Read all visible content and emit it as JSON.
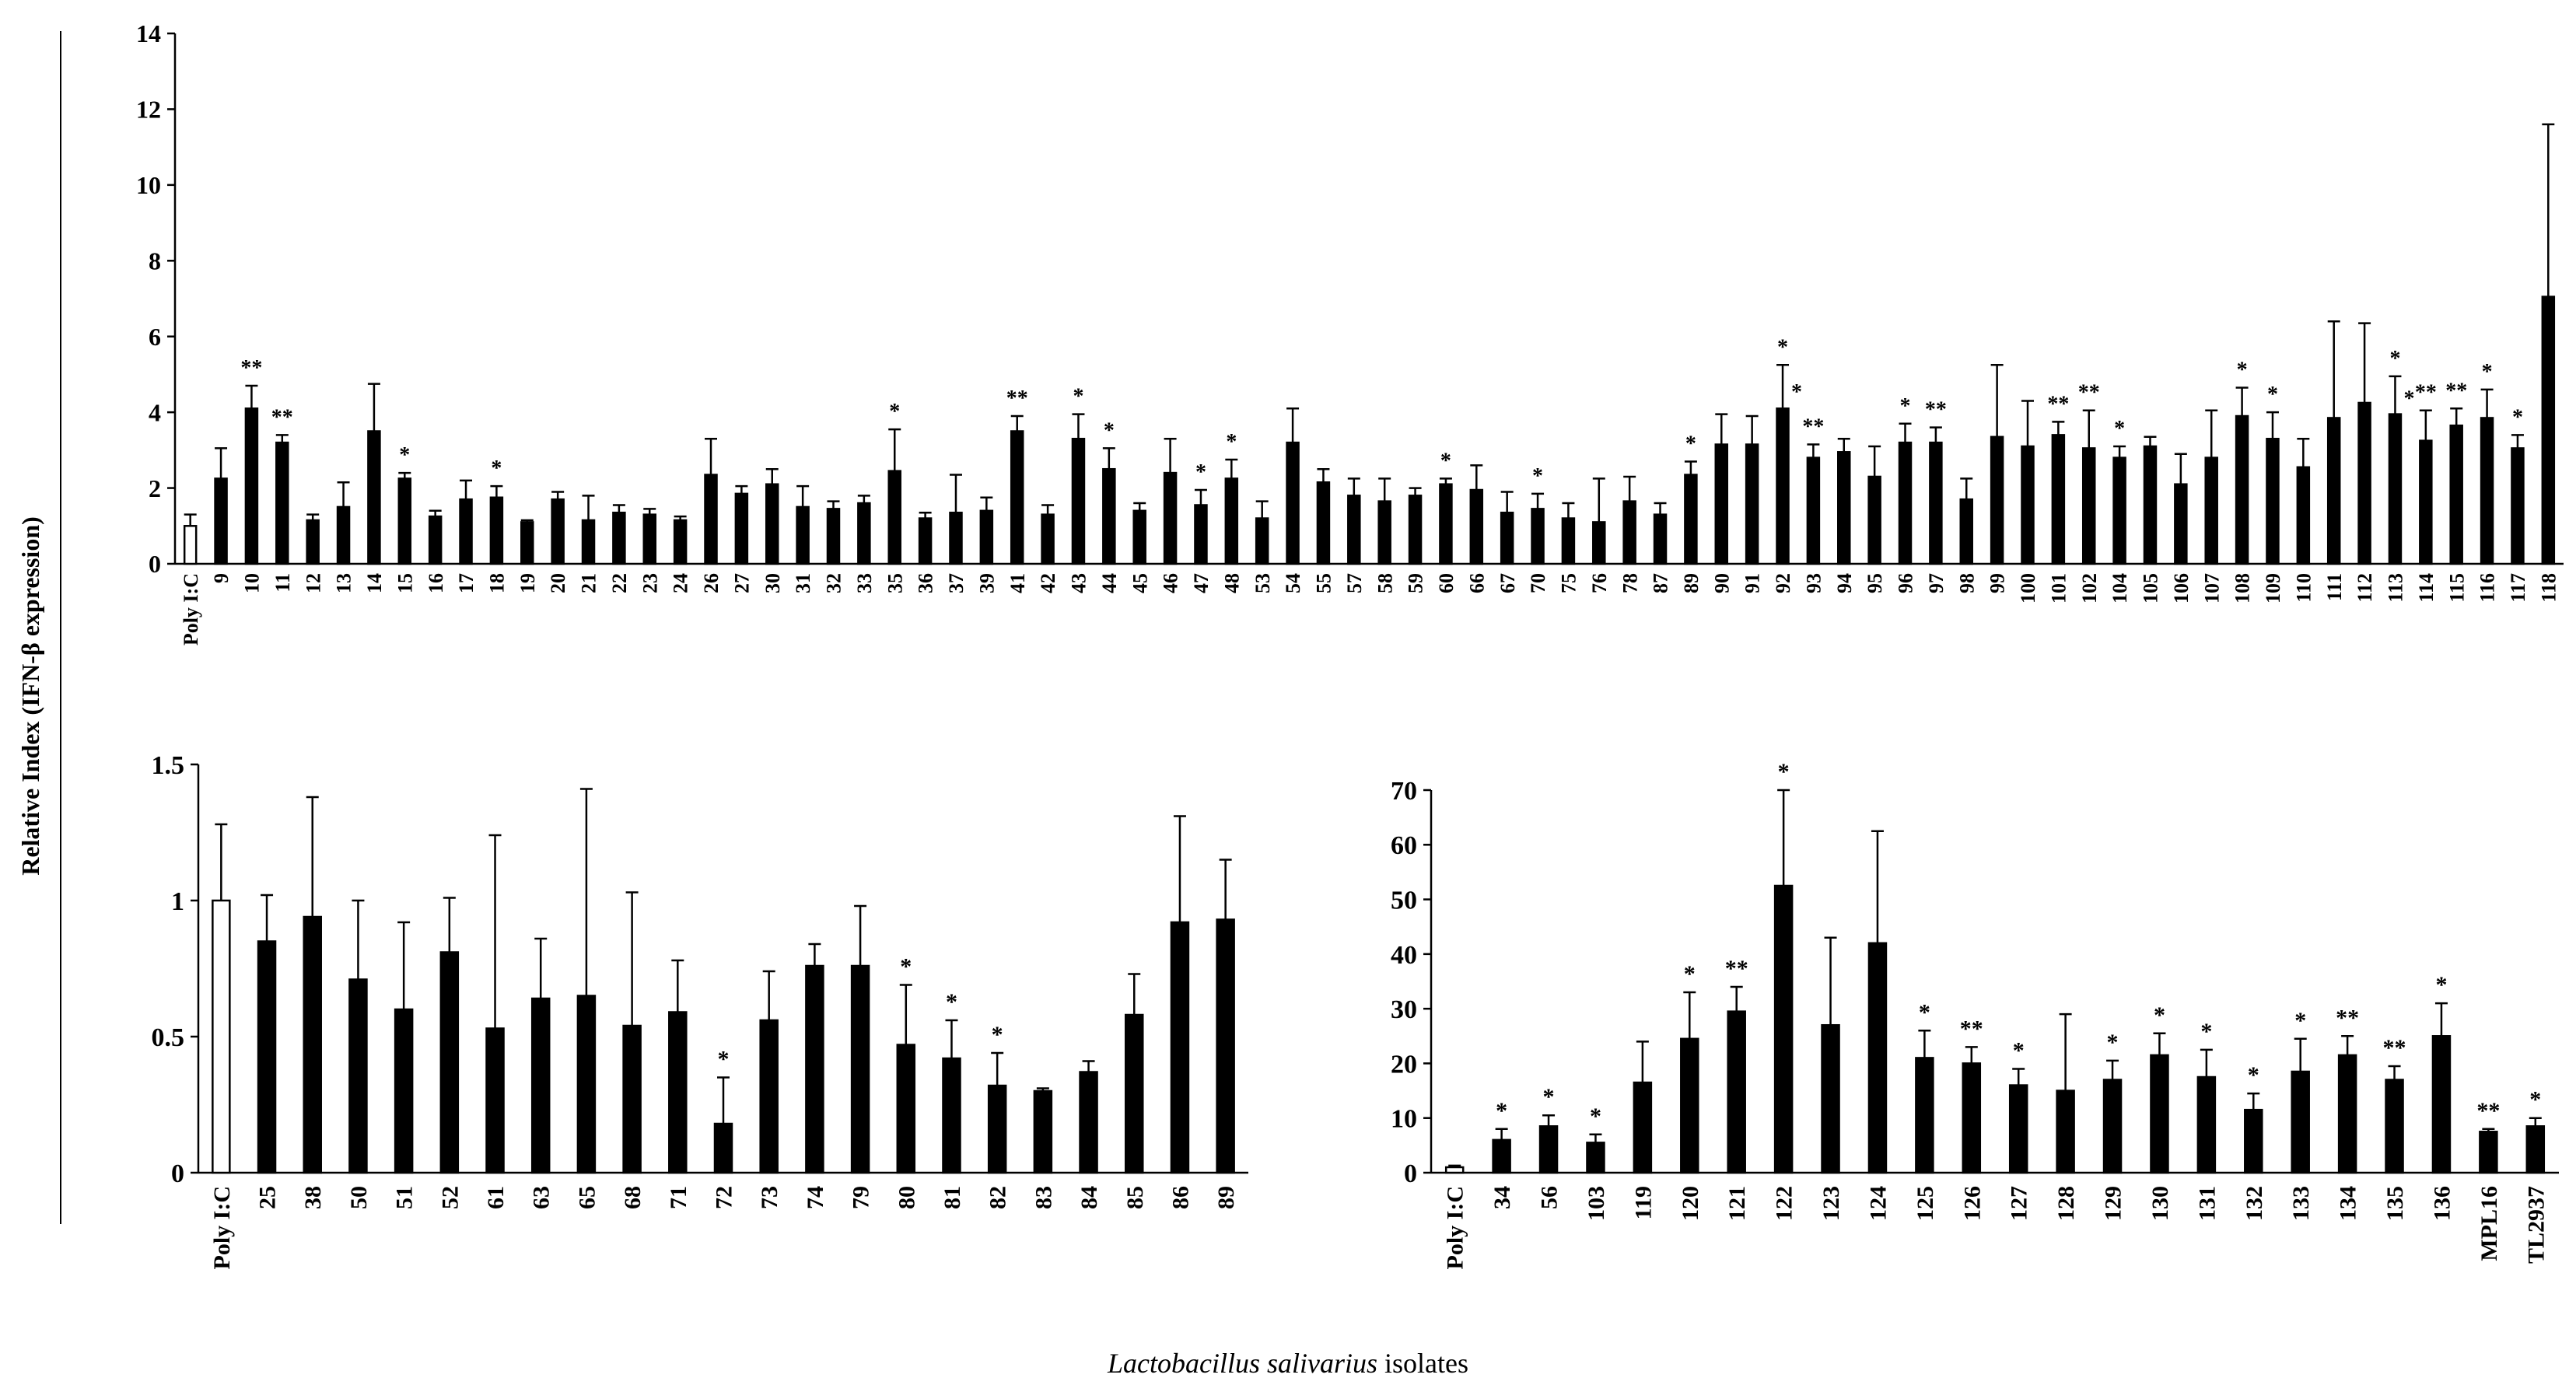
{
  "shared": {
    "ylabel": "Relative Index (IFN-β expression)",
    "xlabel_italic": "Lactobacillus salivarius",
    "xlabel_rest": " isolates"
  },
  "chart_data": [
    {
      "type": "bar",
      "panel": "top",
      "ylim": [
        0,
        14
      ],
      "yticks": [
        "0",
        "2",
        "4",
        "6",
        "8",
        "10",
        "12",
        "14"
      ],
      "categories": [
        "Poly I:C",
        "9",
        "10",
        "11",
        "12",
        "13",
        "14",
        "15",
        "16",
        "17",
        "18",
        "19",
        "20",
        "21",
        "22",
        "23",
        "24",
        "26",
        "27",
        "30",
        "31",
        "32",
        "33",
        "35",
        "36",
        "37",
        "39",
        "41",
        "42",
        "43",
        "44",
        "45",
        "46",
        "47",
        "48",
        "53",
        "54",
        "55",
        "57",
        "58",
        "59",
        "60",
        "66",
        "67",
        "70",
        "75",
        "76",
        "78",
        "87",
        "89",
        "90",
        "91",
        "92",
        "93",
        "94",
        "95",
        "96",
        "97",
        "98",
        "99",
        "100",
        "101",
        "102",
        "104",
        "105",
        "106",
        "107",
        "108",
        "109",
        "110",
        "111",
        "112",
        "113",
        "114",
        "115",
        "116",
        "117",
        "118"
      ],
      "values": [
        1.0,
        2.25,
        4.1,
        3.2,
        1.15,
        1.5,
        3.5,
        2.25,
        1.25,
        1.7,
        1.75,
        1.1,
        1.7,
        1.15,
        1.35,
        1.3,
        1.15,
        2.35,
        1.85,
        2.1,
        1.5,
        1.45,
        1.6,
        2.45,
        1.2,
        1.35,
        1.4,
        3.5,
        1.3,
        3.3,
        2.5,
        1.4,
        2.4,
        1.55,
        2.25,
        1.2,
        3.2,
        2.15,
        1.8,
        1.65,
        1.8,
        2.1,
        1.95,
        1.35,
        1.45,
        1.2,
        1.1,
        1.65,
        1.3,
        2.35,
        3.15,
        3.15,
        4.1,
        2.8,
        2.95,
        2.3,
        3.2,
        3.2,
        1.7,
        3.35,
        3.1,
        3.4,
        3.05,
        2.8,
        3.1,
        2.1,
        2.8,
        3.9,
        3.3,
        2.55,
        3.85,
        4.25,
        3.95,
        3.25,
        3.65,
        3.85,
        3.05,
        7.05
      ],
      "errors": [
        0.3,
        0.8,
        0.6,
        0.2,
        0.15,
        0.65,
        1.25,
        0.15,
        0.15,
        0.5,
        0.3,
        0.05,
        0.2,
        0.65,
        0.2,
        0.15,
        0.1,
        0.95,
        0.2,
        0.4,
        0.55,
        0.2,
        0.2,
        1.1,
        0.15,
        1.0,
        0.35,
        0.4,
        0.25,
        0.65,
        0.55,
        0.2,
        0.9,
        0.4,
        0.5,
        0.45,
        0.9,
        0.35,
        0.45,
        0.6,
        0.2,
        0.15,
        0.65,
        0.55,
        0.4,
        0.4,
        1.15,
        0.65,
        0.3,
        0.35,
        0.8,
        0.75,
        1.15,
        0.35,
        0.35,
        0.8,
        0.5,
        0.4,
        0.55,
        1.9,
        1.2,
        0.35,
        1.0,
        0.3,
        0.25,
        0.8,
        1.25,
        0.75,
        0.7,
        0.75,
        2.55,
        2.1,
        1.0,
        0.8,
        0.45,
        0.75,
        0.35,
        4.55
      ],
      "significance": [
        "",
        "",
        "**",
        "**",
        "",
        "",
        "",
        "*",
        "",
        "",
        "*",
        "",
        "",
        "",
        "",
        "",
        "",
        "",
        "",
        "",
        "",
        "",
        "",
        "*",
        "",
        "",
        "",
        "**",
        "",
        "*",
        "*",
        "",
        "",
        "*",
        "*",
        "",
        "",
        "",
        "",
        "",
        "",
        "*",
        "",
        "",
        "*",
        "",
        "",
        "",
        "",
        "*",
        "",
        "",
        "*",
        "**",
        "",
        "",
        "*",
        "**",
        "",
        "",
        "",
        "**",
        "**",
        "*",
        "",
        "",
        "",
        "*",
        "*",
        "",
        "",
        "",
        "*",
        "**",
        "**",
        "*",
        "*",
        ""
      ],
      "significance_extra": {
        "92": "*",
        "113": "*"
      },
      "bar_colors": {
        "Poly I:C": "#ffffff",
        "default": "#000000"
      }
    },
    {
      "type": "bar",
      "panel": "bottom-left",
      "ylim": [
        0,
        1.5
      ],
      "yticks": [
        "0",
        "0.5",
        "1",
        "1.5"
      ],
      "categories": [
        "Poly I:C",
        "25",
        "38",
        "50",
        "51",
        "52",
        "61",
        "63",
        "65",
        "68",
        "71",
        "72",
        "73",
        "74",
        "79",
        "80",
        "81",
        "82",
        "83",
        "84",
        "85",
        "86",
        "89"
      ],
      "values": [
        1.0,
        0.85,
        0.94,
        0.71,
        0.6,
        0.81,
        0.53,
        0.64,
        0.65,
        0.54,
        0.59,
        0.18,
        0.56,
        0.76,
        0.76,
        0.47,
        0.42,
        0.32,
        0.3,
        0.37,
        0.58,
        0.92,
        0.93
      ],
      "errors": [
        0.28,
        0.17,
        0.44,
        0.29,
        0.32,
        0.2,
        0.71,
        0.22,
        0.76,
        0.49,
        0.19,
        0.17,
        0.18,
        0.08,
        0.22,
        0.22,
        0.14,
        0.12,
        0.01,
        0.04,
        0.15,
        0.39,
        0.22
      ],
      "significance": [
        "",
        "",
        "",
        "",
        "",
        "",
        "",
        "",
        "",
        "",
        "",
        "*",
        "",
        "",
        "",
        "*",
        "*",
        "*",
        "",
        "",
        "",
        "",
        ""
      ],
      "bar_colors": {
        "Poly I:C": "#ffffff",
        "default": "#000000"
      }
    },
    {
      "type": "bar",
      "panel": "bottom-right",
      "ylim": [
        0,
        70
      ],
      "yticks": [
        "0",
        "10",
        "20",
        "30",
        "40",
        "50",
        "60",
        "70"
      ],
      "categories": [
        "Poly I:C",
        "34",
        "56",
        "103",
        "119",
        "120",
        "121",
        "122",
        "123",
        "124",
        "125",
        "126",
        "127",
        "128",
        "129",
        "130",
        "131",
        "132",
        "133",
        "134",
        "135",
        "136",
        "MPL16",
        "TL2937"
      ],
      "values": [
        1.0,
        6.0,
        8.5,
        5.5,
        16.5,
        24.5,
        29.5,
        52.5,
        27.0,
        42.0,
        21.0,
        20.0,
        16.0,
        15.0,
        17.0,
        21.5,
        17.5,
        11.5,
        18.5,
        21.5,
        17.0,
        25.0,
        7.5,
        8.5
      ],
      "errors": [
        0.3,
        2.0,
        2.0,
        1.5,
        7.5,
        8.5,
        4.5,
        17.5,
        16.0,
        20.5,
        5.0,
        3.0,
        3.0,
        14.0,
        3.5,
        4.0,
        5.0,
        3.0,
        6.0,
        3.5,
        2.5,
        6.0,
        0.5,
        1.5
      ],
      "significance": [
        "",
        "*",
        "*",
        "*",
        "",
        "*",
        "**",
        "*",
        "",
        "",
        "*",
        "**",
        "*",
        "",
        "*",
        "*",
        "*",
        "*",
        "*",
        "**",
        "**",
        "*",
        "**",
        "*"
      ],
      "bar_colors": {
        "Poly I:C": "#ffffff",
        "default": "#000000"
      }
    }
  ]
}
